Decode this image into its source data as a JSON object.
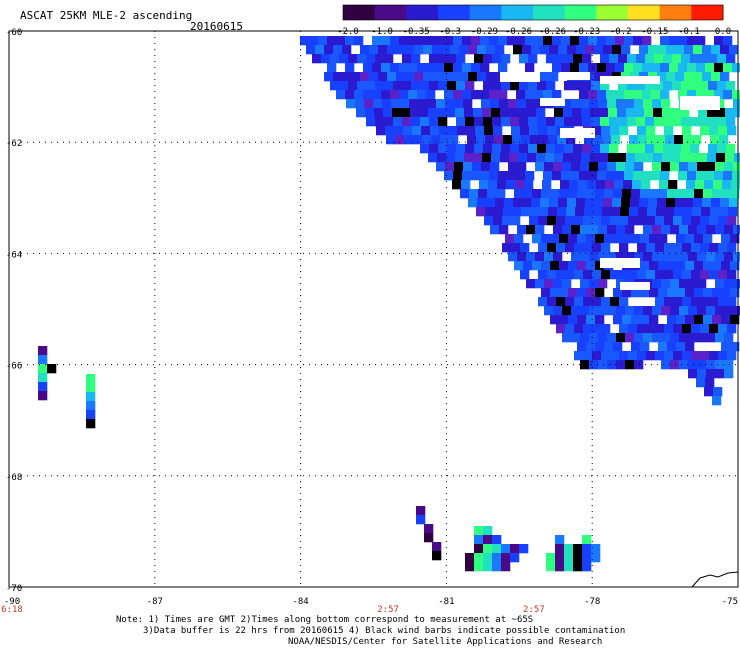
{
  "header": {
    "title": "ASCAT 25KM MLE-2 ascending",
    "date": "20160615"
  },
  "colorbar": {
    "labels": [
      "-2.0",
      "-1.0",
      "-0.35",
      "-0.3",
      "-0.29",
      "-0.26",
      "-0.26",
      "-0.23",
      "-0.2",
      "-0.15",
      "-0.1",
      "0.0"
    ],
    "colors": [
      "#300040",
      "#4a0a88",
      "#2a1ad0",
      "#1840ff",
      "#1a78ff",
      "#1ab8f0",
      "#20e0c0",
      "#30ff80",
      "#9cff30",
      "#ffe020",
      "#ff8010",
      "#ff1a00"
    ]
  },
  "axes": {
    "lat_labels": [
      "-60",
      "-62",
      "-64",
      "-66",
      "-68",
      "-70"
    ],
    "lon_labels": [
      "-90",
      "-87",
      "-84",
      "-81",
      "-78",
      "-75"
    ]
  },
  "times": [
    {
      "label": "6:18",
      "lon": -90
    },
    {
      "label": "2:57",
      "lon": -82.2
    },
    {
      "label": "2:57",
      "lon": -79.2
    }
  ],
  "notes": [
    "Note: 1) Times are GMT 2)Times along bottom correspond to measurement at ~65S",
    "3)Data buffer is 22 hrs from 20160615 4) Black wind barbs indicate possible contamination",
    "NOAA/NESDIS/Center for Satellite Applications and Research"
  ]
}
